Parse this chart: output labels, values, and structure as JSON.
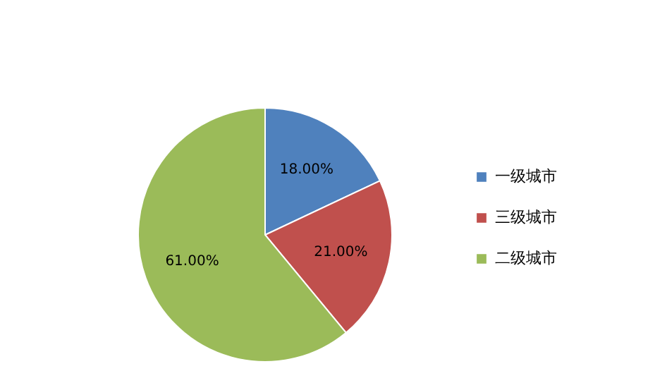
{
  "chart_data": {
    "type": "pie",
    "categories": [
      "一级城市",
      "三级城市",
      "二级城市"
    ],
    "values": [
      18,
      21,
      61
    ],
    "colors": [
      "#4f81bd",
      "#c0504d",
      "#9bbb59"
    ],
    "value_labels": [
      "18.00%",
      "21.00%",
      "61.00%"
    ],
    "legend": "right"
  }
}
